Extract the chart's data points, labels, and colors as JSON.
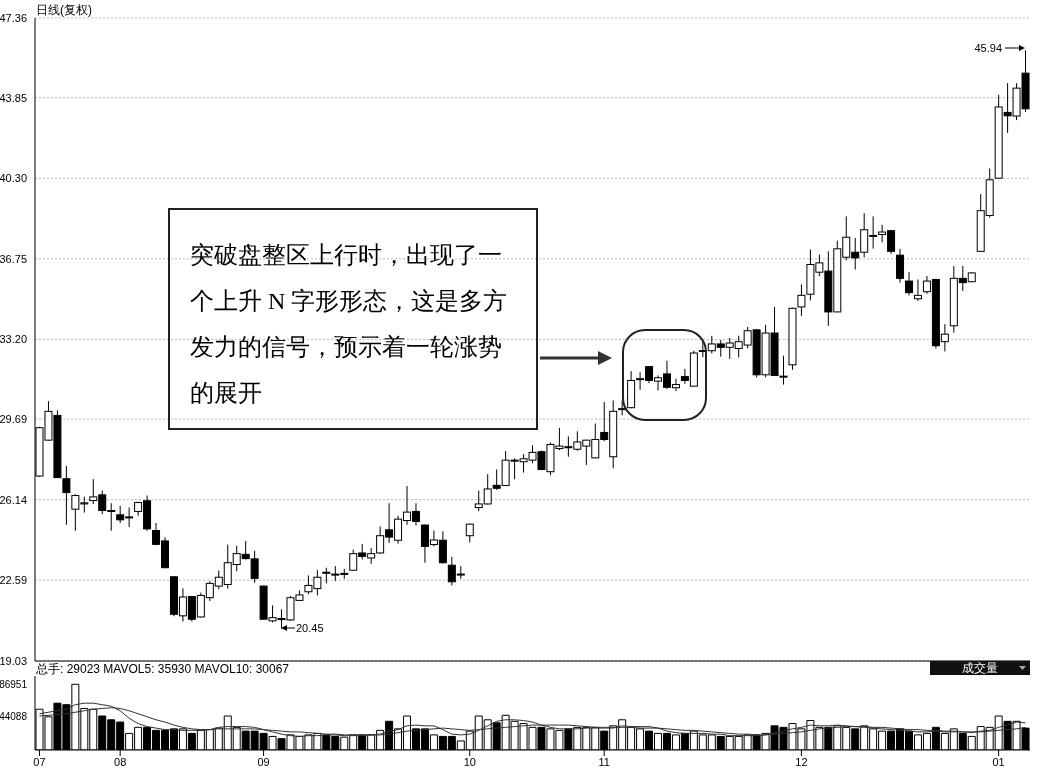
{
  "chart_data": [
    {
      "type": "candlestick",
      "title": "日线(复权)",
      "color": "#000000",
      "categories": [
        "07",
        null,
        null,
        null,
        null,
        null,
        null,
        null,
        null,
        "08",
        null,
        null,
        null,
        null,
        null,
        null,
        null,
        null,
        null,
        null,
        null,
        null,
        null,
        null,
        null,
        "09",
        null,
        null,
        null,
        null,
        null,
        null,
        null,
        null,
        null,
        null,
        null,
        null,
        null,
        null,
        null,
        null,
        null,
        null,
        null,
        null,
        null,
        null,
        "10",
        null,
        null,
        null,
        null,
        null,
        null,
        null,
        null,
        null,
        null,
        null,
        null,
        null,
        null,
        "11",
        null,
        null,
        null,
        null,
        null,
        null,
        null,
        null,
        null,
        null,
        null,
        null,
        null,
        null,
        null,
        null,
        null,
        null,
        null,
        null,
        null,
        "12",
        null,
        null,
        null,
        null,
        null,
        null,
        null,
        null,
        null,
        null,
        null,
        null,
        null,
        null,
        null,
        null,
        null,
        null,
        null,
        null,
        null,
        "01",
        null,
        null,
        null
      ],
      "ohlc": [
        [
          27.18,
          29.35,
          27.15,
          29.31
        ],
        [
          28.76,
          30.48,
          28.74,
          30.03
        ],
        [
          29.85,
          30.07,
          27.1,
          27.11
        ],
        [
          27.06,
          27.62,
          25.03,
          26.45
        ],
        [
          25.72,
          26.38,
          24.77,
          26.32
        ],
        [
          25.95,
          26.27,
          25.57,
          26.0
        ],
        [
          26.1,
          27.04,
          25.95,
          26.26
        ],
        [
          26.35,
          26.54,
          25.5,
          25.66
        ],
        [
          25.66,
          25.98,
          24.77,
          25.64
        ],
        [
          25.47,
          25.87,
          25.11,
          25.25
        ],
        [
          25.36,
          25.79,
          24.93,
          25.38
        ],
        [
          25.62,
          26.05,
          25.43,
          26.01
        ],
        [
          26.09,
          26.32,
          24.77,
          24.85
        ],
        [
          24.78,
          25.11,
          24.13,
          24.17
        ],
        [
          24.32,
          24.48,
          23.12,
          23.14
        ],
        [
          22.74,
          22.76,
          21.0,
          21.09
        ],
        [
          21.02,
          22.23,
          20.77,
          21.85
        ],
        [
          21.87,
          21.9,
          20.77,
          20.87
        ],
        [
          20.97,
          22.04,
          20.95,
          21.92
        ],
        [
          21.82,
          22.55,
          21.67,
          22.45
        ],
        [
          22.33,
          23.02,
          22.19,
          22.72
        ],
        [
          22.4,
          24.16,
          22.22,
          23.36
        ],
        [
          23.28,
          24.11,
          22.99,
          23.76
        ],
        [
          23.73,
          24.32,
          23.5,
          23.54
        ],
        [
          23.53,
          23.89,
          22.48,
          22.67
        ],
        [
          22.33,
          22.35,
          20.85,
          20.87
        ],
        [
          20.8,
          21.48,
          20.73,
          20.94
        ],
        [
          20.9,
          21.31,
          20.45,
          20.88
        ],
        [
          20.84,
          21.89,
          20.8,
          21.82
        ],
        [
          21.7,
          22.14,
          21.68,
          21.94
        ],
        [
          22.08,
          22.8,
          21.97,
          22.36
        ],
        [
          22.22,
          23.03,
          21.92,
          22.72
        ],
        [
          22.94,
          23.14,
          22.45,
          22.92
        ],
        [
          22.86,
          23.21,
          22.55,
          22.84
        ],
        [
          22.88,
          23.09,
          22.65,
          22.89
        ],
        [
          23.03,
          23.94,
          23.0,
          23.76
        ],
        [
          23.79,
          24.19,
          23.5,
          23.64
        ],
        [
          23.57,
          24.01,
          23.31,
          23.76
        ],
        [
          23.79,
          24.96,
          23.75,
          24.55
        ],
        [
          24.81,
          25.98,
          24.23,
          24.49
        ],
        [
          24.35,
          25.43,
          24.2,
          25.28
        ],
        [
          25.22,
          26.74,
          25.03,
          25.59
        ],
        [
          25.62,
          25.98,
          25.0,
          25.18
        ],
        [
          25.02,
          25.05,
          23.36,
          24.08
        ],
        [
          24.16,
          24.78,
          24.08,
          24.36
        ],
        [
          24.35,
          24.74,
          23.33,
          23.36
        ],
        [
          23.25,
          23.62,
          22.36,
          22.52
        ],
        [
          22.82,
          23.21,
          22.65,
          22.86
        ],
        [
          24.55,
          25.08,
          24.26,
          25.06
        ],
        [
          25.79,
          26.54,
          25.64,
          25.95
        ],
        [
          25.95,
          27.26,
          25.92,
          26.61
        ],
        [
          26.77,
          27.47,
          26.57,
          26.64
        ],
        [
          26.76,
          28.28,
          26.74,
          27.88
        ],
        [
          27.86,
          27.96,
          27.04,
          27.88
        ],
        [
          27.81,
          28.14,
          27.33,
          27.94
        ],
        [
          27.88,
          28.54,
          27.74,
          28.22
        ],
        [
          28.25,
          28.3,
          27.44,
          27.47
        ],
        [
          27.37,
          28.66,
          27.22,
          28.57
        ],
        [
          28.39,
          29.3,
          28.32,
          28.5
        ],
        [
          28.47,
          28.93,
          28.03,
          28.45
        ],
        [
          28.36,
          29.15,
          28.29,
          28.68
        ],
        [
          28.5,
          28.78,
          27.66,
          28.76
        ],
        [
          27.98,
          29.49,
          27.96,
          28.79
        ],
        [
          29.1,
          30.44,
          28.71,
          28.79
        ],
        [
          28.03,
          30.51,
          27.52,
          30.03
        ],
        [
          30.13,
          30.51,
          29.85,
          30.15
        ],
        [
          30.19,
          31.8,
          30.17,
          31.39
        ],
        [
          31.45,
          31.75,
          30.98,
          31.47
        ],
        [
          32.0,
          32.02,
          31.27,
          31.39
        ],
        [
          31.36,
          31.61,
          30.95,
          31.51
        ],
        [
          31.68,
          32.26,
          31.02,
          31.09
        ],
        [
          31.07,
          31.46,
          30.92,
          31.21
        ],
        [
          31.56,
          31.9,
          31.24,
          31.39
        ],
        [
          31.14,
          32.7,
          31.12,
          32.6
        ],
        [
          32.69,
          33.17,
          32.41,
          32.71
        ],
        [
          32.7,
          33.36,
          32.58,
          33.0
        ],
        [
          33.0,
          33.17,
          32.44,
          32.85
        ],
        [
          32.85,
          33.26,
          32.34,
          33.04
        ],
        [
          32.8,
          33.36,
          32.41,
          33.1
        ],
        [
          32.95,
          33.75,
          32.8,
          33.58
        ],
        [
          33.62,
          33.66,
          31.53,
          31.64
        ],
        [
          31.64,
          33.84,
          31.53,
          33.48
        ],
        [
          33.48,
          34.63,
          31.58,
          31.61
        ],
        [
          31.58,
          32.48,
          31.21,
          31.55
        ],
        [
          32.08,
          34.6,
          31.86,
          34.57
        ],
        [
          34.63,
          35.62,
          34.24,
          35.14
        ],
        [
          35.19,
          37.16,
          34.92,
          36.5
        ],
        [
          36.16,
          36.94,
          35.99,
          36.57
        ],
        [
          36.21,
          37.08,
          33.8,
          34.41
        ],
        [
          34.41,
          37.55,
          34.4,
          37.19
        ],
        [
          36.82,
          38.62,
          36.68,
          37.7
        ],
        [
          37.04,
          37.67,
          36.28,
          36.79
        ],
        [
          37.04,
          38.76,
          36.82,
          38.03
        ],
        [
          37.76,
          38.62,
          37.2,
          37.78
        ],
        [
          37.82,
          38.25,
          37.48,
          37.93
        ],
        [
          37.99,
          38.02,
          36.97,
          37.08
        ],
        [
          36.91,
          37.19,
          35.7,
          35.89
        ],
        [
          35.77,
          36.16,
          35.14,
          35.26
        ],
        [
          34.99,
          35.84,
          34.89,
          35.14
        ],
        [
          35.3,
          35.99,
          35.21,
          35.77
        ],
        [
          35.84,
          35.87,
          32.8,
          32.92
        ],
        [
          33.1,
          33.87,
          32.67,
          33.43
        ],
        [
          33.8,
          36.43,
          33.5,
          35.89
        ],
        [
          35.89,
          36.43,
          35.33,
          35.7
        ],
        [
          35.74,
          36.16,
          35.72,
          36.13
        ],
        [
          37.08,
          39.6,
          37.06,
          38.87
        ],
        [
          38.66,
          40.73,
          38.57,
          40.23
        ],
        [
          40.3,
          43.98,
          40.28,
          43.44
        ],
        [
          43.2,
          44.49,
          42.3,
          43.05
        ],
        [
          43.04,
          44.49,
          42.86,
          44.27
        ],
        [
          44.93,
          45.94,
          43.22,
          43.36
        ]
      ],
      "ylim": [
        19.03,
        47.36
      ],
      "yticks": [
        19.03,
        22.59,
        26.14,
        {
          "value": 29.69,
          "label": "29.69"
        },
        {
          "value": 33.2,
          "label": "33.20"
        },
        36.75,
        {
          "value": 40.3,
          "label": "40.30"
        },
        43.85,
        47.36
      ],
      "grid": "y",
      "tick_labels": "y",
      "annotations": [
        "突破盘整区上行时，出现了一个上升 N 字形形态，这是多方发力的信号，预示着一轮涨势的展开",
        "45.94",
        "20.45"
      ]
    },
    {
      "type": "bar",
      "title": "总手: 29023 MAVOL5: 35930 MAVOL10: 30067",
      "annotations": [
        "成交量"
      ],
      "categories": [
        "07",
        null,
        null,
        null,
        null,
        null,
        null,
        null,
        null,
        "08",
        null,
        null,
        null,
        null,
        null,
        null,
        null,
        null,
        null,
        null,
        null,
        null,
        null,
        null,
        null,
        "09",
        null,
        null,
        null,
        null,
        null,
        null,
        null,
        null,
        null,
        null,
        null,
        null,
        null,
        null,
        null,
        null,
        null,
        null,
        null,
        null,
        null,
        null,
        "10",
        null,
        null,
        null,
        null,
        null,
        null,
        null,
        null,
        null,
        null,
        null,
        null,
        null,
        null,
        "11",
        null,
        null,
        null,
        null,
        null,
        null,
        null,
        null,
        null,
        null,
        null,
        null,
        null,
        null,
        null,
        null,
        null,
        null,
        null,
        null,
        null,
        "12",
        null,
        null,
        null,
        null,
        null,
        null,
        null,
        null,
        null,
        null,
        null,
        null,
        null,
        null,
        null,
        null,
        null,
        null,
        null,
        null,
        null,
        "01",
        null,
        null,
        null
      ],
      "ylim": [
        0,
        98000
      ],
      "yticks": [
        44088,
        86951
      ],
      "series": [
        {
          "type": "bar",
          "color": "#000000",
          "colors": [
            "#ffffff",
            "#ffffff",
            "#000000",
            "#000000",
            "#ffffff",
            "#ffffff",
            "#ffffff",
            "#000000",
            "#000000",
            "#000000",
            "#ffffff",
            "#ffffff",
            "#000000",
            "#000000",
            "#000000",
            "#000000",
            "#ffffff",
            "#000000",
            "#ffffff",
            "#ffffff",
            "#ffffff",
            "#ffffff",
            "#ffffff",
            "#000000",
            "#000000",
            "#000000",
            "#ffffff",
            "#000000",
            "#ffffff",
            "#ffffff",
            "#ffffff",
            "#ffffff",
            "#000000",
            "#000000",
            "#ffffff",
            "#ffffff",
            "#000000",
            "#ffffff",
            "#ffffff",
            "#000000",
            "#ffffff",
            "#ffffff",
            "#000000",
            "#000000",
            "#ffffff",
            "#000000",
            "#000000",
            "#ffffff",
            "#ffffff",
            "#ffffff",
            "#ffffff",
            "#000000",
            "#ffffff",
            "#ffffff",
            "#ffffff",
            "#ffffff",
            "#000000",
            "#ffffff",
            "#ffffff",
            "#000000",
            "#ffffff",
            "#ffffff",
            "#ffffff",
            "#000000",
            "#ffffff",
            "#ffffff",
            "#ffffff",
            "#ffffff",
            "#000000",
            "#ffffff",
            "#000000",
            "#ffffff",
            "#000000",
            "#ffffff",
            "#ffffff",
            "#ffffff",
            "#000000",
            "#ffffff",
            "#ffffff",
            "#ffffff",
            "#000000",
            "#ffffff",
            "#000000",
            "#000000",
            "#ffffff",
            "#ffffff",
            "#ffffff",
            "#ffffff",
            "#000000",
            "#ffffff",
            "#ffffff",
            "#000000",
            "#ffffff",
            "#ffffff",
            "#ffffff",
            "#000000",
            "#000000",
            "#000000",
            "#ffffff",
            "#ffffff",
            "#000000",
            "#ffffff",
            "#ffffff",
            "#000000",
            "#ffffff",
            "#ffffff",
            "#ffffff",
            "#ffffff",
            "#000000",
            "#ffffff",
            "#000000"
          ],
          "values": [
            54000,
            44000,
            62000,
            60000,
            87000,
            55000,
            54000,
            45000,
            40000,
            37000,
            22000,
            30000,
            30000,
            26000,
            26000,
            28000,
            28000,
            22000,
            26000,
            27000,
            29000,
            45000,
            30000,
            25000,
            25000,
            22000,
            18000,
            15000,
            20000,
            18000,
            20000,
            22000,
            20000,
            18000,
            17000,
            20000,
            20000,
            20000,
            26000,
            38000,
            28000,
            45000,
            28000,
            28000,
            20000,
            18000,
            18000,
            12000,
            25000,
            45000,
            40000,
            36000,
            46000,
            38000,
            35000,
            30000,
            30000,
            28000,
            26000,
            28000,
            30000,
            30000,
            30000,
            25000,
            32000,
            40000,
            30000,
            28000,
            25000,
            22000,
            22000,
            20000,
            22000,
            25000,
            20000,
            20000,
            18000,
            18000,
            18000,
            20000,
            20000,
            22000,
            32000,
            30000,
            35000,
            28000,
            39000,
            30000,
            30000,
            32000,
            30000,
            28000,
            32000,
            28000,
            25000,
            25000,
            28000,
            25000,
            20000,
            22000,
            30000,
            22000,
            28000,
            22000,
            18000,
            31000,
            30000,
            45000,
            38000,
            38000,
            29000
          ]
        },
        {
          "type": "line",
          "color": "#333333",
          "values": [
            48000,
            50000,
            52000,
            54000,
            60000,
            62000,
            62000,
            60000,
            58000,
            52000,
            42000,
            35000,
            31000,
            29000,
            27000,
            27000,
            26000,
            26000,
            26000,
            27000,
            30000,
            31000,
            31000,
            31000,
            30000,
            27000,
            24000,
            21000,
            19000,
            18000,
            19000,
            19000,
            20000,
            20000,
            19000,
            19000,
            19000,
            20000,
            21000,
            25000,
            27000,
            32000,
            33000,
            32000,
            32000,
            27000,
            21000,
            20000,
            21000,
            26000,
            32000,
            38000,
            40000,
            40000,
            39000,
            37000,
            33000,
            30000,
            28000,
            28000,
            28000,
            29000,
            29000,
            29000,
            29000,
            32000,
            31000,
            31000,
            31000,
            29000,
            25000,
            23000,
            22000,
            22000,
            22000,
            21000,
            21000,
            19000,
            19000,
            19000,
            19000,
            20000,
            23000,
            25000,
            28000,
            30000,
            33000,
            32000,
            32000,
            33000,
            32000,
            31000,
            30000,
            29000,
            28000,
            27000,
            26000,
            25000,
            24000,
            24000,
            25000,
            24000,
            24000,
            24000,
            23000,
            25000,
            26000,
            30000,
            33000,
            37000,
            36000
          ]
        },
        {
          "type": "line",
          "color": "#333333",
          "values": [
            45000,
            46000,
            47000,
            48000,
            50000,
            52000,
            54000,
            55000,
            56000,
            55000,
            52000,
            48000,
            44000,
            40000,
            37000,
            33000,
            30000,
            28000,
            27000,
            27000,
            28000,
            28000,
            28000,
            28000,
            28000,
            27000,
            26000,
            25000,
            24000,
            24000,
            23000,
            22000,
            21000,
            21000,
            20000,
            20000,
            20000,
            20000,
            20000,
            21000,
            23000,
            25000,
            26000,
            27000,
            28000,
            29000,
            28000,
            27000,
            26000,
            27000,
            28000,
            29000,
            30000,
            31000,
            32000,
            33000,
            33000,
            33000,
            33000,
            33000,
            32000,
            31000,
            30000,
            30000,
            30000,
            30000,
            30000,
            29000,
            29000,
            29000,
            28000,
            27000,
            26000,
            26000,
            25000,
            24000,
            23000,
            22000,
            21000,
            21000,
            20000,
            20000,
            21000,
            22000,
            23000,
            24000,
            26000,
            28000,
            29000,
            30000,
            31000,
            31000,
            31000,
            30000,
            30000,
            29000,
            28000,
            27000,
            27000,
            26000,
            26000,
            25000,
            25000,
            24000,
            24000,
            24000,
            25000,
            26000,
            27000,
            28000,
            30000
          ]
        }
      ]
    }
  ]
}
